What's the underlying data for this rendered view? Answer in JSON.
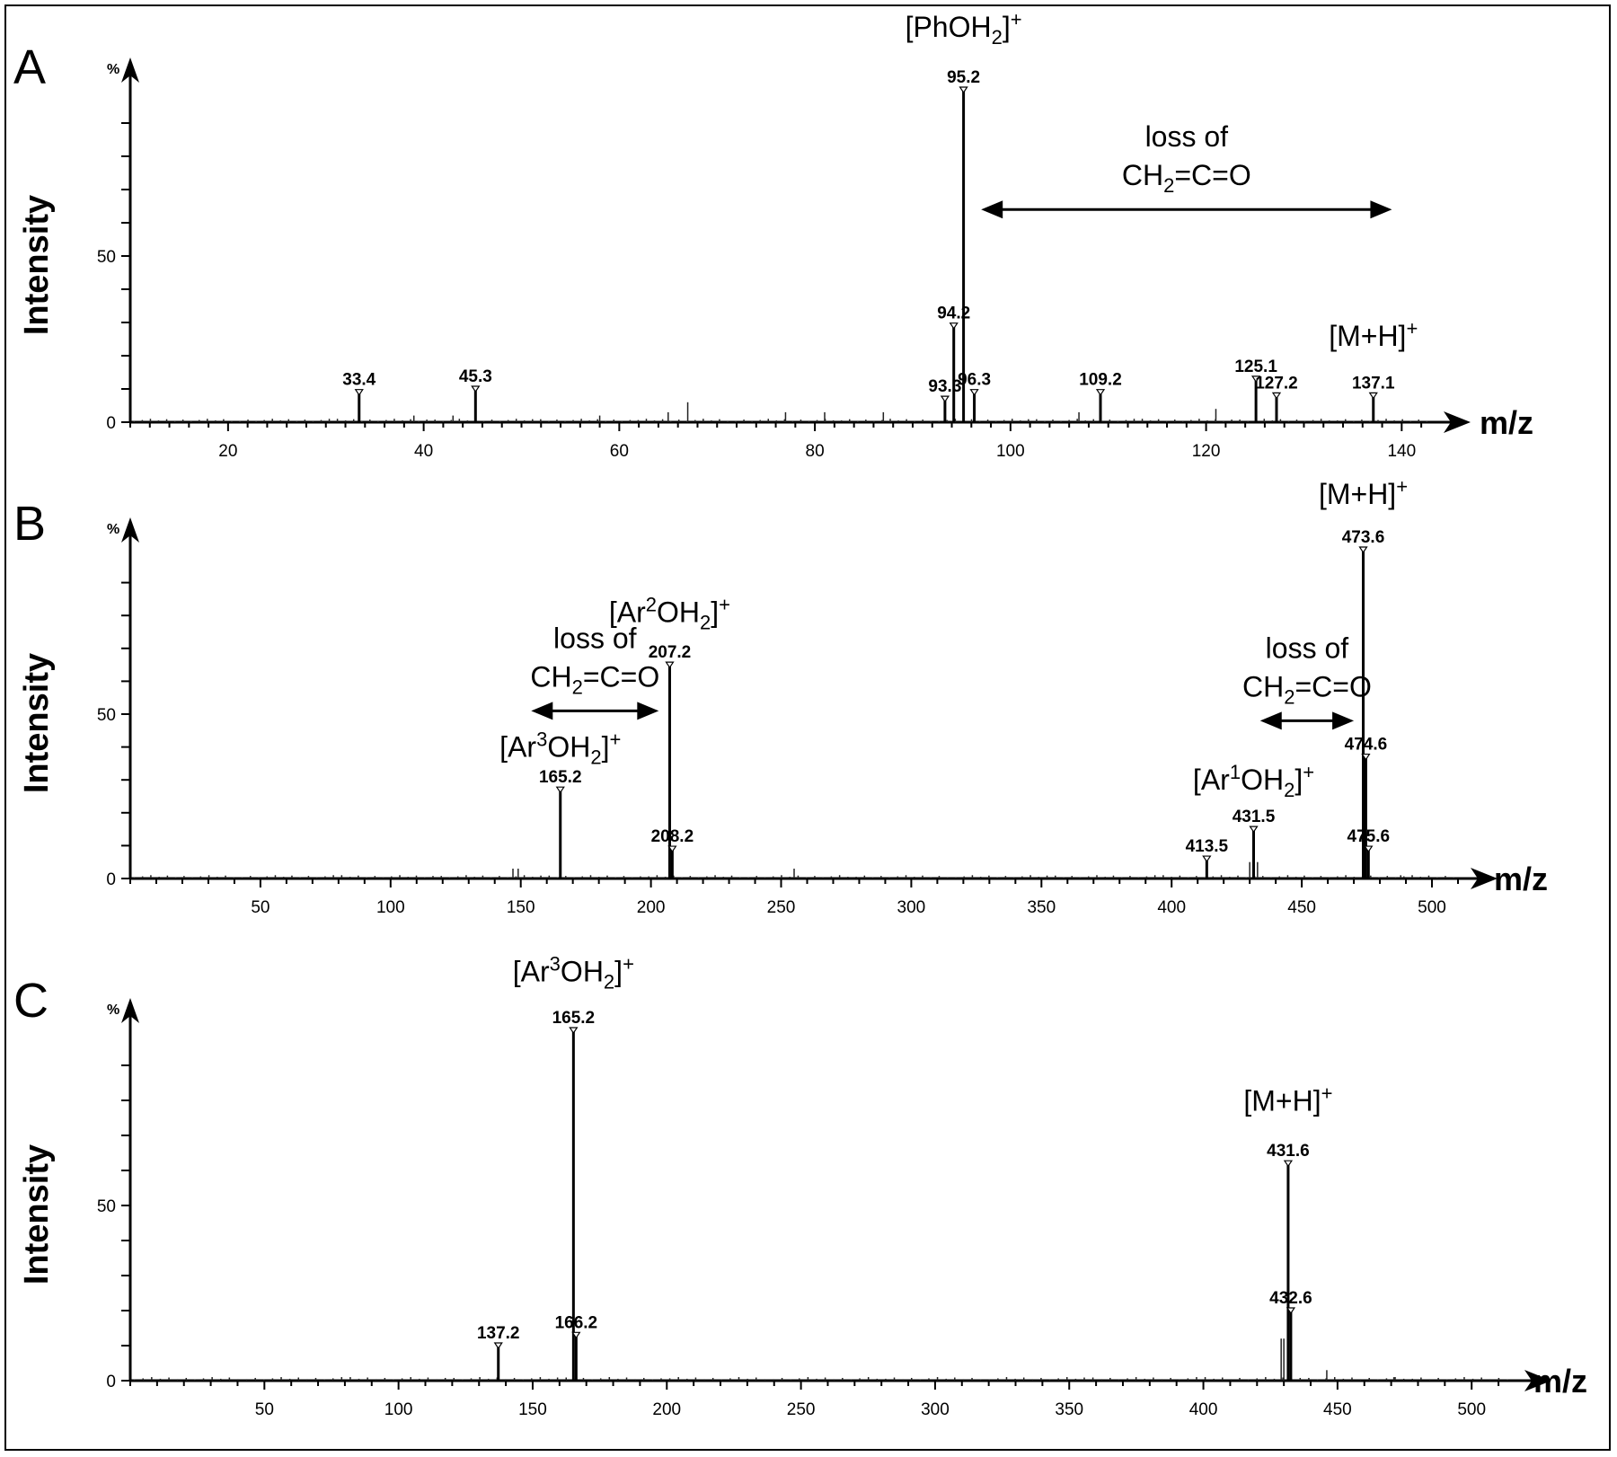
{
  "chart_data": [
    {
      "panel": "A",
      "type": "bar",
      "ylabel": "Intensity",
      "ylabel_unit": "%",
      "xlabel": "m/z",
      "xlim": [
        10,
        143
      ],
      "ylim": [
        0,
        100
      ],
      "xticks": [
        20,
        40,
        60,
        80,
        100,
        120,
        140
      ],
      "yticks": [
        0,
        50
      ],
      "peaks": [
        {
          "x": 33.4,
          "y": 9,
          "label": "33.4"
        },
        {
          "x": 45.3,
          "y": 10,
          "label": "45.3"
        },
        {
          "x": 93.3,
          "y": 7,
          "label": "93.3"
        },
        {
          "x": 94.2,
          "y": 29,
          "label": "94.2"
        },
        {
          "x": 95.2,
          "y": 100,
          "label": "95.2"
        },
        {
          "x": 96.3,
          "y": 9,
          "label": "96.3"
        },
        {
          "x": 109.2,
          "y": 9,
          "label": "109.2"
        },
        {
          "x": 125.1,
          "y": 13,
          "label": "125.1"
        },
        {
          "x": 127.2,
          "y": 8,
          "label": "127.2"
        },
        {
          "x": 137.1,
          "y": 8,
          "label": "137.1"
        }
      ],
      "minor_peaks": [
        {
          "x": 39,
          "y": 2
        },
        {
          "x": 43,
          "y": 2
        },
        {
          "x": 58,
          "y": 2
        },
        {
          "x": 65,
          "y": 3
        },
        {
          "x": 67,
          "y": 6
        },
        {
          "x": 77,
          "y": 3
        },
        {
          "x": 81,
          "y": 3
        },
        {
          "x": 87,
          "y": 3
        },
        {
          "x": 107,
          "y": 3
        },
        {
          "x": 121,
          "y": 4
        }
      ],
      "ion_labels": [
        {
          "text": "[PhOH",
          "sub": "2",
          "tail": "]",
          "sup": "+",
          "x": 95.2,
          "y": 116
        },
        {
          "text": "[M+H]",
          "sub": "",
          "tail": "",
          "sup": "+",
          "x": 137.1,
          "y": 23
        }
      ],
      "arrows": [
        {
          "from": 97,
          "to": 139,
          "y": 64,
          "line1": "loss of",
          "line2_pre": "CH",
          "line2_sub": "2",
          "line2_post": "=C=O"
        }
      ]
    },
    {
      "panel": "B",
      "type": "bar",
      "ylabel": "Intensity",
      "ylabel_unit": "%",
      "xlabel": "m/z",
      "xlim": [
        0,
        510
      ],
      "ylim": [
        0,
        100
      ],
      "xticks": [
        50,
        100,
        150,
        200,
        250,
        300,
        350,
        400,
        450,
        500
      ],
      "yticks": [
        0,
        50
      ],
      "peaks": [
        {
          "x": 165.2,
          "y": 27,
          "label": "165.2"
        },
        {
          "x": 207.2,
          "y": 65,
          "label": "207.2"
        },
        {
          "x": 208.2,
          "y": 9,
          "label": "208.2"
        },
        {
          "x": 413.5,
          "y": 6,
          "label": "413.5"
        },
        {
          "x": 431.5,
          "y": 15,
          "label": "431.5"
        },
        {
          "x": 473.6,
          "y": 100,
          "label": "473.6"
        },
        {
          "x": 474.6,
          "y": 37,
          "label": "474.6"
        },
        {
          "x": 475.6,
          "y": 9,
          "label": "475.6"
        }
      ],
      "minor_peaks": [
        {
          "x": 147,
          "y": 3
        },
        {
          "x": 149,
          "y": 3
        },
        {
          "x": 255,
          "y": 3
        },
        {
          "x": 430,
          "y": 5
        },
        {
          "x": 433,
          "y": 5
        },
        {
          "x": 488,
          "y": 1
        }
      ],
      "ion_labels": [
        {
          "text": "[M+H]",
          "sub": "",
          "tail": "",
          "sup": "+",
          "x": 473.6,
          "y": 114
        },
        {
          "text": "[Ar",
          "supmid": "2",
          "text2": "OH",
          "sub": "2",
          "tail": "]",
          "sup": "+",
          "x": 207.2,
          "y": 78
        },
        {
          "text": "[Ar",
          "supmid": "3",
          "text2": "OH",
          "sub": "2",
          "tail": "]",
          "sup": "+",
          "x": 165.2,
          "y": 37
        },
        {
          "text": "[Ar",
          "supmid": "1",
          "text2": "OH",
          "sub": "2",
          "tail": "]",
          "sup": "+",
          "x": 431.5,
          "y": 27
        }
      ],
      "arrows": [
        {
          "from": 154,
          "to": 203,
          "y": 51,
          "line1": "loss of",
          "line2_pre": "CH",
          "line2_sub": "2",
          "line2_post": "=C=O"
        },
        {
          "from": 434,
          "to": 470,
          "y": 48,
          "line1": "loss of",
          "line2_pre": "CH",
          "line2_sub": "2",
          "line2_post": "=C=O"
        }
      ]
    },
    {
      "panel": "C",
      "type": "bar",
      "ylabel": "Intensity",
      "ylabel_unit": "%",
      "xlabel": "m/z",
      "xlim": [
        0,
        515
      ],
      "ylim": [
        0,
        100
      ],
      "xticks": [
        50,
        100,
        150,
        200,
        250,
        300,
        350,
        400,
        450,
        500
      ],
      "yticks": [
        0,
        50
      ],
      "peaks": [
        {
          "x": 137.2,
          "y": 10,
          "label": "137.2"
        },
        {
          "x": 165.2,
          "y": 100,
          "label": "165.2"
        },
        {
          "x": 166.2,
          "y": 13,
          "label": "166.2"
        },
        {
          "x": 431.6,
          "y": 62,
          "label": "431.6"
        },
        {
          "x": 432.6,
          "y": 20,
          "label": "432.6"
        }
      ],
      "minor_peaks": [
        {
          "x": 429,
          "y": 12
        },
        {
          "x": 430,
          "y": 12
        },
        {
          "x": 446,
          "y": 3
        },
        {
          "x": 471,
          "y": 1
        }
      ],
      "ion_labels": [
        {
          "text": "[Ar",
          "supmid": "3",
          "text2": "OH",
          "sub": "2",
          "tail": "]",
          "sup": "+",
          "x": 165.2,
          "y": 114
        },
        {
          "text": "[M+H]",
          "sub": "",
          "tail": "",
          "sup": "+",
          "x": 431.6,
          "y": 77
        }
      ],
      "arrows": []
    }
  ]
}
